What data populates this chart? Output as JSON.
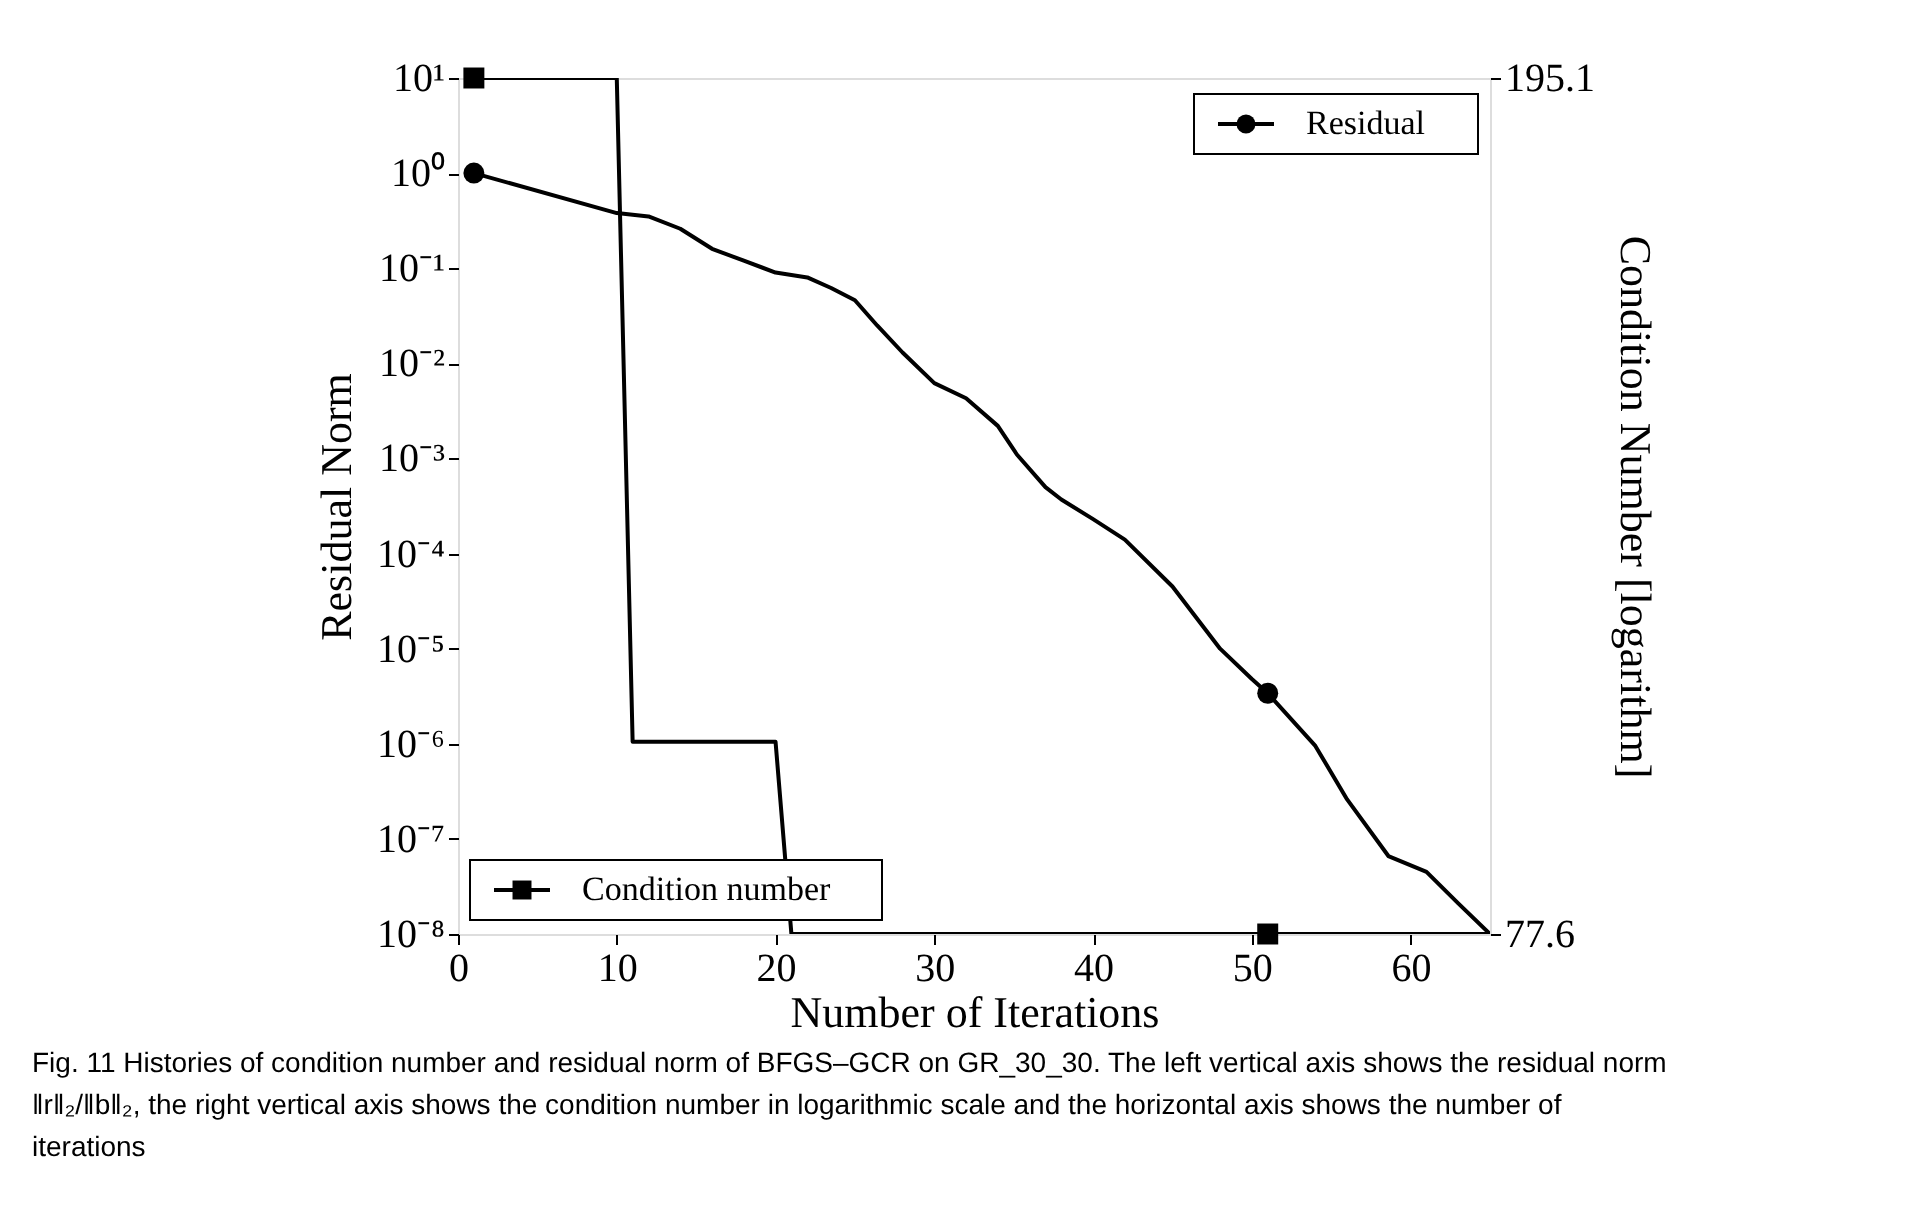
{
  "chart_data": {
    "type": "line",
    "xlabel": "Number of Iterations",
    "ylabel": "Residual Norm",
    "y2label": "Condition Number [logarithm]",
    "xlim": [
      0,
      65
    ],
    "xticks": [
      0,
      10,
      20,
      30,
      40,
      50,
      60
    ],
    "ylim": [
      1e-08,
      10
    ],
    "log": "y",
    "yticks": [
      {
        "value": 10,
        "label": "10¹"
      },
      {
        "value": 1,
        "label": "10⁰"
      },
      {
        "value": 0.1,
        "label": "10⁻¹"
      },
      {
        "value": 0.01,
        "label": "10⁻²"
      },
      {
        "value": 0.001,
        "label": "10⁻³"
      },
      {
        "value": 0.0001,
        "label": "10⁻⁴"
      },
      {
        "value": 1e-05,
        "label": "10⁻⁵"
      },
      {
        "value": 1e-06,
        "label": "10⁻⁶"
      },
      {
        "value": 1e-07,
        "label": "10⁻⁷"
      },
      {
        "value": 1e-08,
        "label": "10⁻⁸"
      }
    ],
    "y2lim": [
      77.6,
      195.1
    ],
    "y2ticks": [
      {
        "value": 77.6,
        "label": "77.6"
      },
      {
        "value": 195.1,
        "label": "195.1"
      }
    ],
    "grid": false,
    "line_style": "solid",
    "legend": "top right",
    "series": [
      {
        "name": "Residual",
        "color": "#000000",
        "x": [
          1,
          10,
          12,
          14,
          16,
          18,
          20,
          22,
          23.5,
          25,
          26.4,
          28,
          30,
          32,
          34,
          35.2,
          37,
          38,
          40,
          42,
          45,
          48,
          50,
          51,
          54,
          56,
          58.6,
          61,
          63,
          65
        ],
        "values": [
          1.0,
          0.38,
          0.35,
          0.26,
          0.16,
          0.12,
          0.09,
          0.08,
          0.062,
          0.046,
          0.025,
          0.013,
          0.0062,
          0.0043,
          0.0022,
          0.0011,
          0.0005,
          0.00037,
          0.00023,
          0.00014,
          4.5e-05,
          1e-05,
          4.8e-06,
          3.4e-06,
          9.5e-07,
          2.6e-07,
          6.6e-08,
          4.5e-08,
          2.1e-08,
          1e-08
        ]
      },
      {
        "type": "scatter",
        "color": "#000000",
        "marker": "circle",
        "x": [
          1,
          51
        ],
        "values": [
          1.0,
          3.4e-06
        ]
      },
      {
        "name": "Condition number",
        "color": "#000000",
        "axis": "y2",
        "x": [
          1,
          10,
          11,
          20,
          21,
          51,
          65
        ],
        "values": [
          195.1,
          195.1,
          104,
          104,
          77.6,
          77.6,
          77.6
        ]
      },
      {
        "type": "scatter",
        "color": "#000000",
        "marker": "square",
        "axis": "y2",
        "x": [
          1,
          51
        ],
        "values": [
          195.1,
          77.6
        ]
      }
    ],
    "annotations": [
      "Fig. 11  Histories of condition number and residual norm of BFGS–GCR on GR_30_30. The left vertical axis shows the residual norm ‖r‖₂/‖b‖₂, the right vertical axis shows the condition number in logarithmic scale and the horizontal axis shows the number of iterations"
    ]
  }
}
